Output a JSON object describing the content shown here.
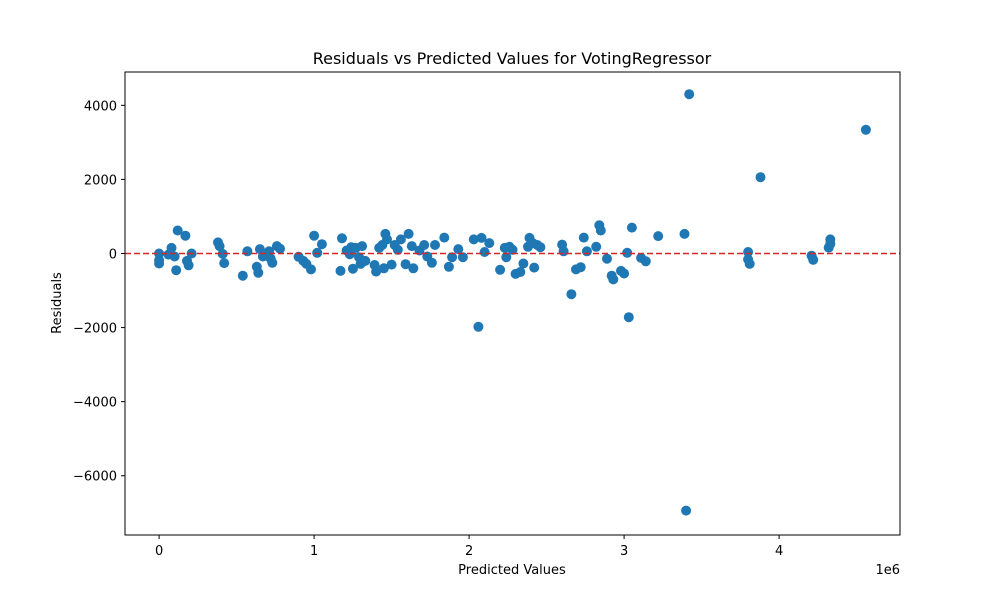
{
  "chart_data": {
    "type": "scatter",
    "title": "Residuals vs Predicted Values for VotingRegressor",
    "xlabel": "Predicted Values",
    "ylabel": "Residuals",
    "x_offset_label": "1e6",
    "xlim": [
      -220000,
      4780000
    ],
    "ylim": [
      -7600,
      4900
    ],
    "x_ticks": [
      0,
      1000000,
      2000000,
      3000000,
      4000000
    ],
    "x_tick_labels": [
      "0",
      "1",
      "2",
      "3",
      "4"
    ],
    "y_ticks": [
      -6000,
      -4000,
      -2000,
      0,
      2000,
      4000
    ],
    "y_tick_labels": [
      "−6000",
      "−4000",
      "−2000",
      "0",
      "2000",
      "4000"
    ],
    "reference_line": {
      "y": 0,
      "color": "#d62728",
      "style": "dashed"
    },
    "marker_color": "#1f77b4",
    "grid": false,
    "points": [
      [
        0,
        0
      ],
      [
        0,
        -180
      ],
      [
        0,
        -270
      ],
      [
        60000,
        -30
      ],
      [
        80000,
        150
      ],
      [
        100000,
        -80
      ],
      [
        110000,
        -450
      ],
      [
        120000,
        620
      ],
      [
        170000,
        480
      ],
      [
        180000,
        -200
      ],
      [
        190000,
        -320
      ],
      [
        210000,
        0
      ],
      [
        380000,
        300
      ],
      [
        390000,
        200
      ],
      [
        410000,
        -10
      ],
      [
        420000,
        -260
      ],
      [
        540000,
        -600
      ],
      [
        570000,
        60
      ],
      [
        630000,
        -360
      ],
      [
        640000,
        -520
      ],
      [
        650000,
        120
      ],
      [
        670000,
        -80
      ],
      [
        710000,
        60
      ],
      [
        720000,
        -140
      ],
      [
        730000,
        -250
      ],
      [
        760000,
        200
      ],
      [
        780000,
        130
      ],
      [
        900000,
        -90
      ],
      [
        930000,
        -200
      ],
      [
        950000,
        -280
      ],
      [
        980000,
        -430
      ],
      [
        1000000,
        480
      ],
      [
        1020000,
        20
      ],
      [
        1050000,
        250
      ],
      [
        1170000,
        -470
      ],
      [
        1180000,
        410
      ],
      [
        1210000,
        80
      ],
      [
        1230000,
        -20
      ],
      [
        1240000,
        170
      ],
      [
        1250000,
        -410
      ],
      [
        1270000,
        150
      ],
      [
        1290000,
        -100
      ],
      [
        1300000,
        -280
      ],
      [
        1310000,
        200
      ],
      [
        1330000,
        -200
      ],
      [
        1390000,
        -310
      ],
      [
        1400000,
        -490
      ],
      [
        1420000,
        150
      ],
      [
        1440000,
        230
      ],
      [
        1450000,
        -400
      ],
      [
        1460000,
        530
      ],
      [
        1470000,
        380
      ],
      [
        1500000,
        -300
      ],
      [
        1520000,
        230
      ],
      [
        1540000,
        100
      ],
      [
        1560000,
        380
      ],
      [
        1590000,
        -290
      ],
      [
        1610000,
        530
      ],
      [
        1630000,
        200
      ],
      [
        1640000,
        -400
      ],
      [
        1680000,
        80
      ],
      [
        1710000,
        230
      ],
      [
        1730000,
        -80
      ],
      [
        1760000,
        -250
      ],
      [
        1780000,
        230
      ],
      [
        1840000,
        430
      ],
      [
        1870000,
        -360
      ],
      [
        1890000,
        -100
      ],
      [
        1930000,
        120
      ],
      [
        1960000,
        -100
      ],
      [
        2030000,
        380
      ],
      [
        2060000,
        -1980
      ],
      [
        2080000,
        420
      ],
      [
        2100000,
        40
      ],
      [
        2130000,
        280
      ],
      [
        2200000,
        -440
      ],
      [
        2230000,
        150
      ],
      [
        2240000,
        -100
      ],
      [
        2260000,
        180
      ],
      [
        2280000,
        100
      ],
      [
        2300000,
        -550
      ],
      [
        2330000,
        -500
      ],
      [
        2350000,
        -270
      ],
      [
        2380000,
        180
      ],
      [
        2390000,
        420
      ],
      [
        2410000,
        280
      ],
      [
        2420000,
        -380
      ],
      [
        2440000,
        230
      ],
      [
        2460000,
        170
      ],
      [
        2600000,
        240
      ],
      [
        2610000,
        60
      ],
      [
        2660000,
        -1100
      ],
      [
        2690000,
        -430
      ],
      [
        2720000,
        -370
      ],
      [
        2740000,
        430
      ],
      [
        2760000,
        60
      ],
      [
        2820000,
        180
      ],
      [
        2840000,
        760
      ],
      [
        2850000,
        620
      ],
      [
        2890000,
        -140
      ],
      [
        2920000,
        -600
      ],
      [
        2930000,
        -700
      ],
      [
        2980000,
        -470
      ],
      [
        3000000,
        -540
      ],
      [
        3020000,
        20
      ],
      [
        3030000,
        -1720
      ],
      [
        3050000,
        700
      ],
      [
        3110000,
        -120
      ],
      [
        3140000,
        -210
      ],
      [
        3220000,
        470
      ],
      [
        3390000,
        530
      ],
      [
        3400000,
        -6940
      ],
      [
        3420000,
        4300
      ],
      [
        3800000,
        40
      ],
      [
        3800000,
        -160
      ],
      [
        3810000,
        -280
      ],
      [
        3880000,
        2060
      ],
      [
        4210000,
        -60
      ],
      [
        4220000,
        -170
      ],
      [
        4320000,
        160
      ],
      [
        4330000,
        380
      ],
      [
        4330000,
        260
      ],
      [
        4560000,
        3340
      ]
    ]
  }
}
